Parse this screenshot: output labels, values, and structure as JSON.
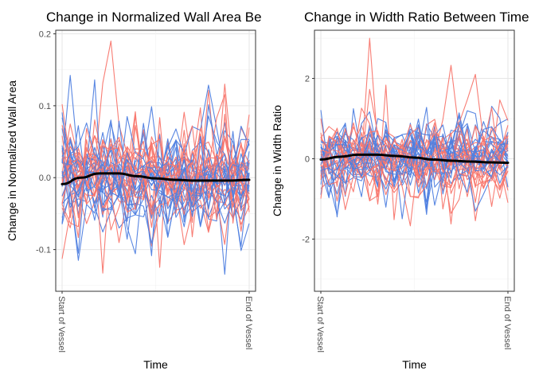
{
  "chart_data": [
    {
      "type": "line",
      "title": "Change in Normalized Wall Area Be",
      "xlabel": "Time",
      "ylabel": "Change in Normalized Wall Area",
      "x_ticks": [
        "Start of Vessel",
        "End of Vessel"
      ],
      "y_ticks": [
        -0.1,
        0.0,
        0.1,
        0.2
      ],
      "y_tick_labels": [
        "-0.1",
        "0.0",
        "0.1",
        "0.2"
      ],
      "ylim": [
        -0.158,
        0.205
      ],
      "grid": true,
      "colors": {
        "group_a": "#F8766D",
        "group_b": "#4F7FE0",
        "trend": "#000000"
      },
      "series_group_a_count": 20,
      "series_group_b_count": 20,
      "points_per_series": 24,
      "noise_sd": 0.04,
      "peak_value": 0.19,
      "trend": {
        "x": [
          0,
          0.1,
          0.2,
          0.3,
          0.4,
          0.5,
          0.6,
          0.7,
          0.8,
          0.9,
          1.0
        ],
        "values": [
          -0.009,
          0.0,
          0.006,
          0.006,
          0.002,
          -0.001,
          -0.003,
          -0.004,
          -0.004,
          -0.004,
          -0.003
        ]
      }
    },
    {
      "type": "line",
      "title": "Change in Width Ratio Between Time",
      "xlabel": "Time",
      "ylabel": "Change in Width Ratio",
      "x_ticks": [
        "Start of Vessel",
        "End of Vessel"
      ],
      "y_ticks": [
        -2,
        0,
        2
      ],
      "y_tick_labels": [
        "-2",
        "0",
        "2"
      ],
      "ylim": [
        -3.3,
        3.2
      ],
      "grid": true,
      "colors": {
        "group_a": "#F8766D",
        "group_b": "#4F7FE0",
        "trend": "#000000"
      },
      "series_group_a_count": 20,
      "series_group_b_count": 20,
      "points_per_series": 24,
      "noise_sd": 0.55,
      "peak_value": 3.0,
      "trend": {
        "x": [
          0,
          0.1,
          0.2,
          0.3,
          0.4,
          0.5,
          0.6,
          0.7,
          0.8,
          0.9,
          1.0
        ],
        "values": [
          -0.02,
          0.05,
          0.1,
          0.1,
          0.07,
          0.03,
          -0.02,
          -0.05,
          -0.07,
          -0.09,
          -0.1
        ]
      }
    }
  ]
}
